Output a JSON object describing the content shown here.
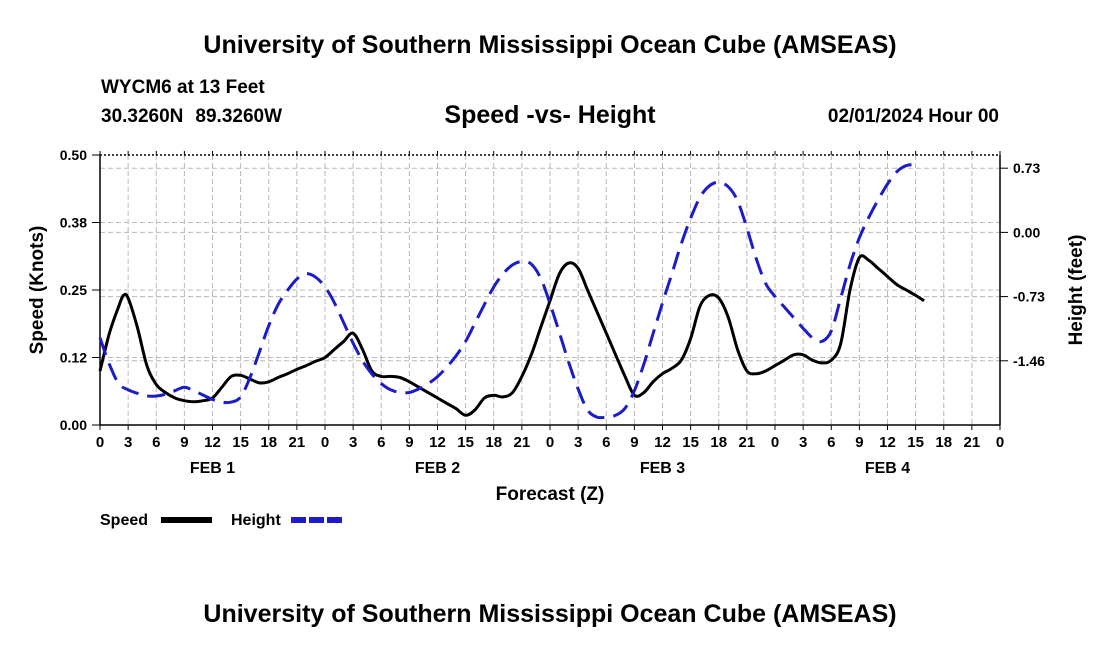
{
  "title": "University of Southern Mississippi Ocean Cube (AMSEAS)",
  "footer_title": "University of Southern Mississippi Ocean Cube (AMSEAS)",
  "station": "WYCM6 at 13 Feet",
  "latitude": "30.3260N",
  "longitude": "89.3260W",
  "subtitle": "Speed -vs- Height",
  "datestamp": "02/01/2024 Hour 00",
  "chart_data": {
    "type": "line",
    "xlabel": "Forecast (Z)",
    "x_hours": [
      0,
      96
    ],
    "x_tick_step_hours": 3,
    "x_tick_labels": [
      "0",
      "3",
      "6",
      "9",
      "12",
      "15",
      "18",
      "21",
      "0",
      "3",
      "6",
      "9",
      "12",
      "15",
      "18",
      "21",
      "0",
      "3",
      "6",
      "9",
      "12",
      "15",
      "18",
      "21",
      "0",
      "3",
      "6",
      "9",
      "12",
      "15",
      "18",
      "21",
      "0"
    ],
    "day_labels": [
      {
        "label": "FEB 1",
        "center_hour": 12
      },
      {
        "label": "FEB 2",
        "center_hour": 36
      },
      {
        "label": "FEB 3",
        "center_hour": 60
      },
      {
        "label": "FEB 4",
        "center_hour": 84
      }
    ],
    "left_axis": {
      "label": "Speed (Knots)",
      "ylim": [
        0,
        0.5
      ],
      "ticks": [
        0,
        0.125,
        0.25,
        0.375,
        0.5
      ],
      "tick_labels": [
        "0.00",
        "0.12",
        "0.25",
        "0.38",
        "0.50"
      ]
    },
    "right_axis": {
      "label": "Height (feet)",
      "ylim": [
        -2.19,
        0.88
      ],
      "ticks": [
        -1.46,
        -0.73,
        0.0,
        0.73
      ],
      "tick_labels": [
        "-1.46",
        "-0.73",
        "0.00",
        "0.73"
      ]
    },
    "series": [
      {
        "name": "Speed",
        "axis": "left",
        "color": "#000000",
        "dash": "solid",
        "points": [
          [
            0,
            0.1
          ],
          [
            1,
            0.17
          ],
          [
            2,
            0.22
          ],
          [
            2.5,
            0.24
          ],
          [
            3,
            0.235
          ],
          [
            4,
            0.18
          ],
          [
            5,
            0.11
          ],
          [
            6,
            0.075
          ],
          [
            7,
            0.06
          ],
          [
            8,
            0.05
          ],
          [
            9,
            0.045
          ],
          [
            10,
            0.043
          ],
          [
            11,
            0.045
          ],
          [
            12,
            0.05
          ],
          [
            13,
            0.07
          ],
          [
            14,
            0.09
          ],
          [
            15,
            0.092
          ],
          [
            16,
            0.085
          ],
          [
            17,
            0.078
          ],
          [
            18,
            0.08
          ],
          [
            19,
            0.088
          ],
          [
            20,
            0.095
          ],
          [
            21,
            0.103
          ],
          [
            22,
            0.11
          ],
          [
            23,
            0.118
          ],
          [
            24,
            0.125
          ],
          [
            25,
            0.14
          ],
          [
            26,
            0.155
          ],
          [
            27,
            0.17
          ],
          [
            28,
            0.14
          ],
          [
            29,
            0.1
          ],
          [
            30,
            0.09
          ],
          [
            31,
            0.09
          ],
          [
            32,
            0.088
          ],
          [
            33,
            0.08
          ],
          [
            34,
            0.07
          ],
          [
            35,
            0.06
          ],
          [
            36,
            0.05
          ],
          [
            37,
            0.04
          ],
          [
            38,
            0.03
          ],
          [
            39,
            0.018
          ],
          [
            40,
            0.028
          ],
          [
            41,
            0.05
          ],
          [
            42,
            0.055
          ],
          [
            43,
            0.052
          ],
          [
            44,
            0.06
          ],
          [
            45,
            0.09
          ],
          [
            46,
            0.13
          ],
          [
            47,
            0.18
          ],
          [
            48,
            0.23
          ],
          [
            49,
            0.28
          ],
          [
            50,
            0.3
          ],
          [
            51,
            0.29
          ],
          [
            52,
            0.25
          ],
          [
            53,
            0.21
          ],
          [
            54,
            0.17
          ],
          [
            55,
            0.13
          ],
          [
            56,
            0.09
          ],
          [
            57,
            0.055
          ],
          [
            58,
            0.06
          ],
          [
            59,
            0.08
          ],
          [
            60,
            0.095
          ],
          [
            61,
            0.105
          ],
          [
            62,
            0.12
          ],
          [
            63,
            0.16
          ],
          [
            64,
            0.22
          ],
          [
            65,
            0.24
          ],
          [
            66,
            0.235
          ],
          [
            67,
            0.2
          ],
          [
            68,
            0.14
          ],
          [
            69,
            0.1
          ],
          [
            70,
            0.095
          ],
          [
            71,
            0.1
          ],
          [
            72,
            0.11
          ],
          [
            73,
            0.12
          ],
          [
            74,
            0.13
          ],
          [
            75,
            0.13
          ],
          [
            76,
            0.12
          ],
          [
            77,
            0.115
          ],
          [
            78,
            0.12
          ],
          [
            79,
            0.15
          ],
          [
            80,
            0.25
          ],
          [
            81,
            0.31
          ],
          [
            82,
            0.305
          ],
          [
            83,
            0.29
          ],
          [
            84,
            0.275
          ],
          [
            85,
            0.26
          ],
          [
            86,
            0.25
          ],
          [
            87,
            0.24
          ],
          [
            87.9,
            0.23
          ]
        ]
      },
      {
        "name": "Height",
        "axis": "right",
        "color": "#1c1cc8",
        "dash": "dashed",
        "points": [
          [
            0,
            -1.2
          ],
          [
            1,
            -1.5
          ],
          [
            2,
            -1.72
          ],
          [
            3,
            -1.79
          ],
          [
            4,
            -1.83
          ],
          [
            5,
            -1.86
          ],
          [
            6,
            -1.86
          ],
          [
            7,
            -1.84
          ],
          [
            8,
            -1.8
          ],
          [
            9,
            -1.76
          ],
          [
            10,
            -1.8
          ],
          [
            11,
            -1.85
          ],
          [
            12,
            -1.9
          ],
          [
            13,
            -1.93
          ],
          [
            14,
            -1.93
          ],
          [
            15,
            -1.87
          ],
          [
            16,
            -1.65
          ],
          [
            17,
            -1.36
          ],
          [
            18,
            -1.06
          ],
          [
            19,
            -0.82
          ],
          [
            20,
            -0.66
          ],
          [
            21,
            -0.53
          ],
          [
            22,
            -0.47
          ],
          [
            23,
            -0.51
          ],
          [
            24,
            -0.62
          ],
          [
            25,
            -0.8
          ],
          [
            26,
            -1.03
          ],
          [
            27,
            -1.26
          ],
          [
            28,
            -1.46
          ],
          [
            29,
            -1.61
          ],
          [
            30,
            -1.72
          ],
          [
            31,
            -1.79
          ],
          [
            32,
            -1.82
          ],
          [
            33,
            -1.82
          ],
          [
            34,
            -1.78
          ],
          [
            35,
            -1.72
          ],
          [
            36,
            -1.64
          ],
          [
            37,
            -1.53
          ],
          [
            38,
            -1.4
          ],
          [
            39,
            -1.24
          ],
          [
            40,
            -1.03
          ],
          [
            41,
            -0.82
          ],
          [
            42,
            -0.62
          ],
          [
            43,
            -0.47
          ],
          [
            44,
            -0.37
          ],
          [
            45,
            -0.33
          ],
          [
            46,
            -0.36
          ],
          [
            47,
            -0.52
          ],
          [
            48,
            -0.81
          ],
          [
            49,
            -1.14
          ],
          [
            50,
            -1.48
          ],
          [
            51,
            -1.78
          ],
          [
            52,
            -2.02
          ],
          [
            53,
            -2.1
          ],
          [
            54,
            -2.1
          ],
          [
            55,
            -2.08
          ],
          [
            56,
            -2.0
          ],
          [
            57,
            -1.8
          ],
          [
            58,
            -1.5
          ],
          [
            59,
            -1.15
          ],
          [
            60,
            -0.8
          ],
          [
            61,
            -0.47
          ],
          [
            62,
            -0.13
          ],
          [
            63,
            0.16
          ],
          [
            64,
            0.4
          ],
          [
            65,
            0.53
          ],
          [
            66,
            0.57
          ],
          [
            67,
            0.52
          ],
          [
            68,
            0.36
          ],
          [
            69,
            0.05
          ],
          [
            70,
            -0.3
          ],
          [
            71,
            -0.58
          ],
          [
            72,
            -0.73
          ],
          [
            73,
            -0.85
          ],
          [
            74,
            -0.97
          ],
          [
            75,
            -1.09
          ],
          [
            76,
            -1.2
          ],
          [
            77,
            -1.24
          ],
          [
            78,
            -1.12
          ],
          [
            79,
            -0.75
          ],
          [
            80,
            -0.37
          ],
          [
            81,
            -0.06
          ],
          [
            82,
            0.17
          ],
          [
            83,
            0.37
          ],
          [
            84,
            0.55
          ],
          [
            85,
            0.69
          ],
          [
            86,
            0.76
          ],
          [
            87,
            0.77
          ]
        ]
      }
    ],
    "legend": [
      {
        "label": "Speed",
        "color": "#000000",
        "dash": "solid"
      },
      {
        "label": "Height",
        "color": "#1c1cc8",
        "dash": "dashed"
      }
    ],
    "legend_position": "bottom-left",
    "grid": true
  }
}
